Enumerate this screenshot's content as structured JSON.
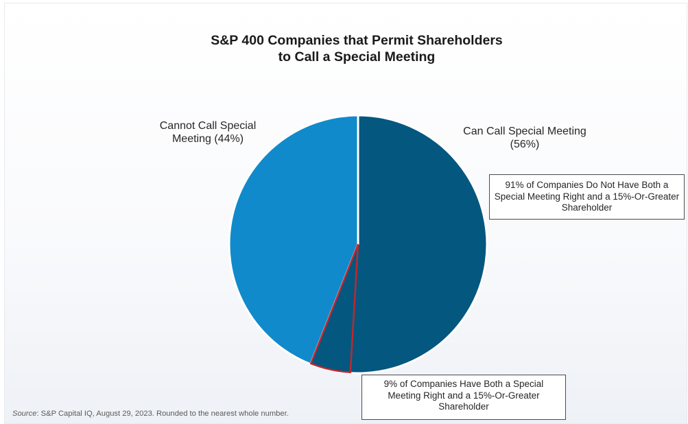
{
  "chart_data": {
    "type": "pie",
    "title": "S&P 400 Companies that Permit Shareholders to Call a Special Meeting",
    "slices": [
      {
        "label": "Cannot Call Special Meeting (44%)",
        "value": 44,
        "color": "#118acb"
      },
      {
        "label": "Can Call Special Meeting (56%)",
        "value": 56,
        "color": "#04577f",
        "breakdown": [
          {
            "label": "91% of Companies Do Not Have Both a Special Meeting Right and a 15%-Or-Greater Shareholder",
            "value": 91
          },
          {
            "label": "9% of Companies Have Both a Special Meeting Right and a 15%-Or-Greater Shareholder",
            "value": 9,
            "highlight_color": "#c0282d"
          }
        ]
      }
    ],
    "source_prefix": "Source",
    "source_text": ": S&P Capital IQ, August 29, 2023. Rounded to the nearest whole number."
  }
}
